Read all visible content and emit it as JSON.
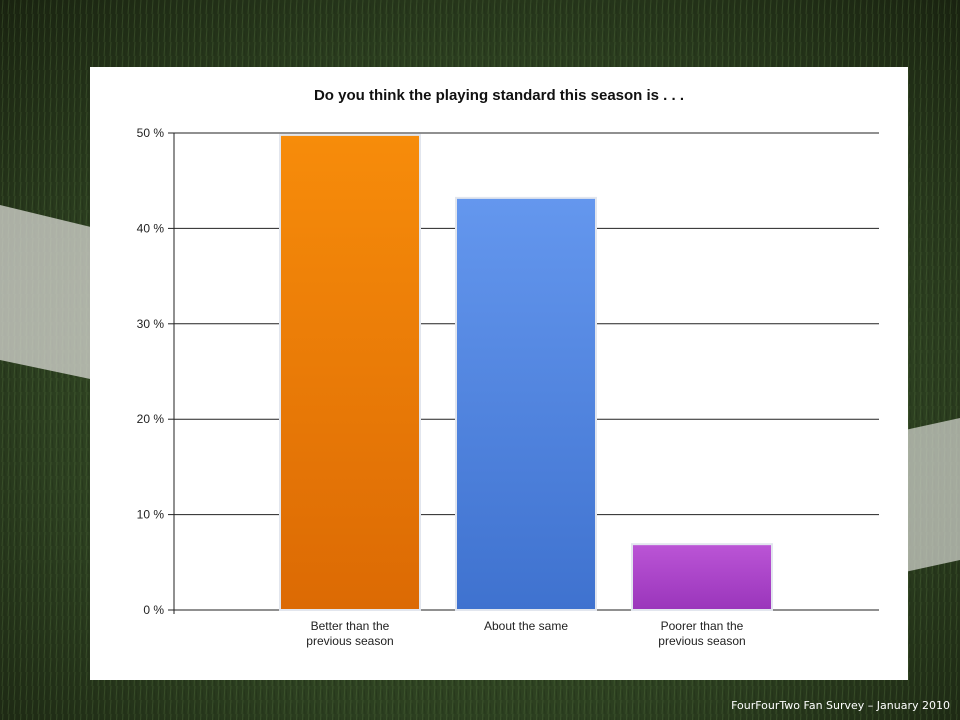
{
  "footer": "FourFourTwo Fan Survey – January 2010",
  "chart_data": {
    "type": "bar",
    "title": "Do you think the playing standard this season is . . .",
    "categories": [
      [
        "Better than the",
        "previous season"
      ],
      [
        "About the same"
      ],
      [
        "Poorer than the",
        "previous season"
      ]
    ],
    "values": [
      49.8,
      43.2,
      6.9
    ],
    "yticks": [
      "0 %",
      "10 %",
      "20 %",
      "30 %",
      "40 %",
      "50 %"
    ],
    "ylim": [
      0,
      50
    ],
    "grid": true,
    "colors": [
      [
        "#f78c0a",
        "#dc6a04"
      ],
      [
        "#6497ee",
        "#3f72cf"
      ],
      [
        "#bb55d6",
        "#9a35bb"
      ]
    ]
  }
}
